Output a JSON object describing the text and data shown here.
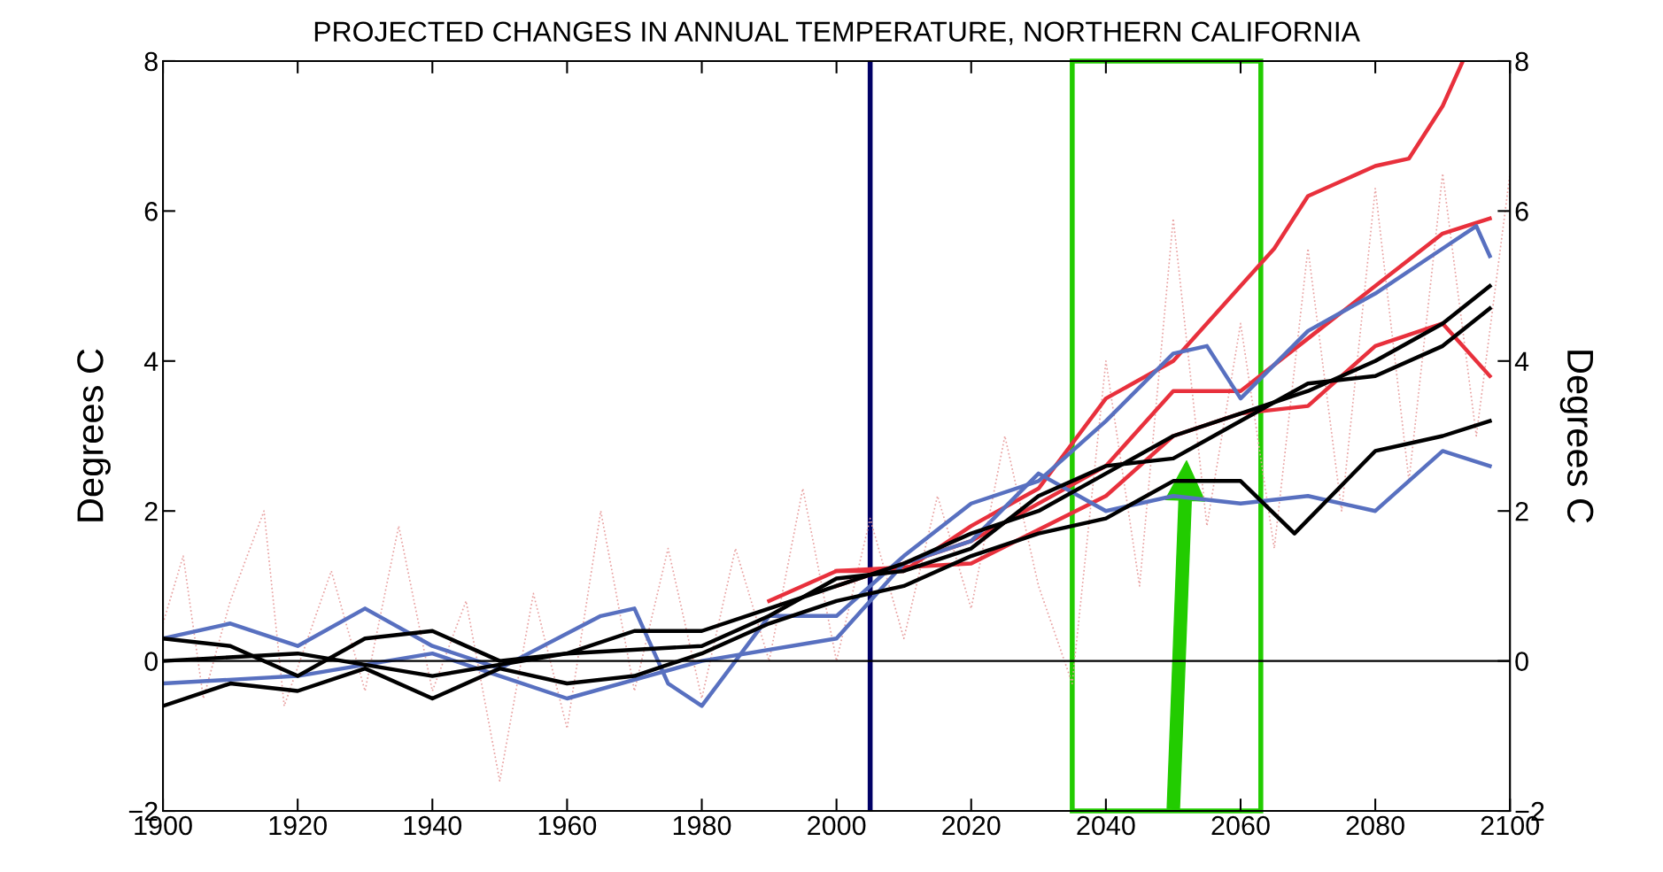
{
  "chart_data": {
    "type": "line",
    "title": "PROJECTED CHANGES IN ANNUAL TEMPERATURE, NORTHERN CALIFORNIA",
    "ylabel": "Degrees C",
    "y2label": "Degrees C",
    "xlim": [
      1900,
      2100
    ],
    "xticks": [
      1900,
      1920,
      1940,
      1960,
      1980,
      2000,
      2020,
      2040,
      2060,
      2080,
      2100
    ],
    "ylim": [
      -2,
      8
    ],
    "yticks": [
      {
        "value": -2,
        "label": "−2"
      },
      0,
      2,
      4,
      6,
      8
    ],
    "y2lim": [
      -2,
      8
    ],
    "y2ticks": [
      {
        "value": -2,
        "label": "−2"
      },
      0,
      2,
      4,
      6,
      8
    ],
    "marker": "none",
    "line_style": "solid",
    "series": [
      {
        "color": "#e8a0a0",
        "line_style": "dotted",
        "x": [
          1900,
          1903,
          1906,
          1910,
          1915,
          1918,
          1925,
          1930,
          1935,
          1940,
          1945,
          1950,
          1955,
          1960,
          1965,
          1970,
          1975,
          1980,
          1985,
          1990,
          1995,
          2000,
          2005,
          2010,
          2015,
          2020,
          2025,
          2030,
          2035,
          2040,
          2045,
          2050,
          2055,
          2060,
          2065,
          2070,
          2075,
          2080,
          2085,
          2090,
          2095,
          2100
        ],
        "values": [
          0.5,
          1.4,
          -0.5,
          0.8,
          2.0,
          -0.6,
          1.2,
          -0.4,
          1.8,
          -0.4,
          0.8,
          -1.6,
          0.9,
          -0.9,
          2.0,
          -0.4,
          1.5,
          -0.5,
          1.5,
          0.0,
          2.3,
          0.0,
          1.9,
          0.3,
          2.2,
          0.7,
          3.0,
          1.0,
          -0.3,
          4.0,
          1.0,
          5.9,
          1.8,
          4.5,
          1.5,
          5.5,
          2.0,
          6.3,
          2.4,
          6.5,
          3.0,
          6.5
        ]
      },
      {
        "color": "#e8303c",
        "x": [
          2000,
          2010,
          2020,
          2030,
          2040,
          2050,
          2060,
          2065,
          2070,
          2080,
          2085,
          2090,
          2093
        ],
        "values": [
          1.2,
          1.2,
          1.8,
          2.3,
          3.5,
          4.0,
          5.0,
          5.5,
          6.2,
          6.6,
          6.7,
          7.4,
          8.0
        ]
      },
      {
        "color": "#e8303c",
        "x": [
          2000,
          2020,
          2040,
          2050,
          2060,
          2070,
          2080,
          2090,
          2097
        ],
        "values": [
          1.0,
          1.6,
          2.6,
          3.6,
          3.6,
          4.3,
          5.0,
          5.7,
          5.9
        ]
      },
      {
        "color": "#e8303c",
        "x": [
          1990,
          2000,
          2020,
          2040,
          2050,
          2060,
          2070,
          2080,
          2090,
          2097
        ],
        "values": [
          0.8,
          1.2,
          1.3,
          2.2,
          3.0,
          3.3,
          3.4,
          4.2,
          4.5,
          3.8
        ]
      },
      {
        "color": "#5870c0",
        "x": [
          1900,
          1910,
          1920,
          1930,
          1940,
          1950,
          1965,
          1970,
          1975,
          1980,
          1990,
          2000,
          2010,
          2020,
          2030,
          2040,
          2050,
          2055,
          2060,
          2070,
          2080,
          2090,
          2095,
          2097
        ],
        "values": [
          0.3,
          0.5,
          0.2,
          0.7,
          0.2,
          -0.1,
          0.6,
          0.7,
          -0.3,
          -0.6,
          0.6,
          0.6,
          1.4,
          2.1,
          2.4,
          3.2,
          4.1,
          4.2,
          3.5,
          4.4,
          4.9,
          5.5,
          5.8,
          5.4
        ]
      },
      {
        "color": "#5870c0",
        "x": [
          1900,
          1920,
          1940,
          1960,
          1980,
          2000,
          2010,
          2020,
          2030,
          2040,
          2050,
          2060,
          2070,
          2080,
          2090,
          2097
        ],
        "values": [
          -0.3,
          -0.2,
          0.1,
          -0.5,
          0.0,
          0.3,
          1.3,
          1.6,
          2.5,
          2.0,
          2.2,
          2.1,
          2.2,
          2.0,
          2.8,
          2.6
        ]
      },
      {
        "color": "#000000",
        "x": [
          1900,
          1910,
          1920,
          1930,
          1940,
          1950,
          1960,
          1970,
          1980,
          1990,
          2000,
          2010,
          2020,
          2030,
          2040,
          2050,
          2060,
          2070,
          2080,
          2090,
          2097
        ],
        "values": [
          0.3,
          0.2,
          -0.2,
          0.3,
          0.4,
          0.0,
          0.1,
          0.4,
          0.4,
          0.7,
          1.0,
          1.3,
          1.7,
          2.0,
          2.5,
          3.0,
          3.3,
          3.6,
          4.0,
          4.5,
          5.0
        ]
      },
      {
        "color": "#000000",
        "x": [
          1900,
          1910,
          1920,
          1930,
          1940,
          1950,
          1960,
          1970,
          1980,
          1990,
          2000,
          2010,
          2020,
          2030,
          2040,
          2050,
          2060,
          2068,
          2080,
          2090,
          2097
        ],
        "values": [
          -0.6,
          -0.3,
          -0.4,
          -0.1,
          -0.5,
          -0.1,
          -0.3,
          -0.2,
          0.1,
          0.5,
          0.8,
          1.0,
          1.4,
          1.7,
          1.9,
          2.4,
          2.4,
          1.7,
          2.8,
          3.0,
          3.2
        ]
      },
      {
        "color": "#000000",
        "x": [
          1900,
          1920,
          1940,
          1960,
          1980,
          1990,
          2000,
          2010,
          2020,
          2030,
          2040,
          2050,
          2060,
          2070,
          2080,
          2090,
          2097
        ],
        "values": [
          0.0,
          0.1,
          -0.2,
          0.1,
          0.2,
          0.6,
          1.1,
          1.2,
          1.5,
          2.2,
          2.6,
          2.7,
          3.2,
          3.7,
          3.8,
          4.2,
          4.7
        ]
      }
    ],
    "ref_lines": [
      {
        "axis": "x",
        "value": 2005,
        "color": "#000066"
      },
      {
        "axis": "y",
        "value": 0,
        "color": "#000000"
      }
    ],
    "grid": false
  }
}
